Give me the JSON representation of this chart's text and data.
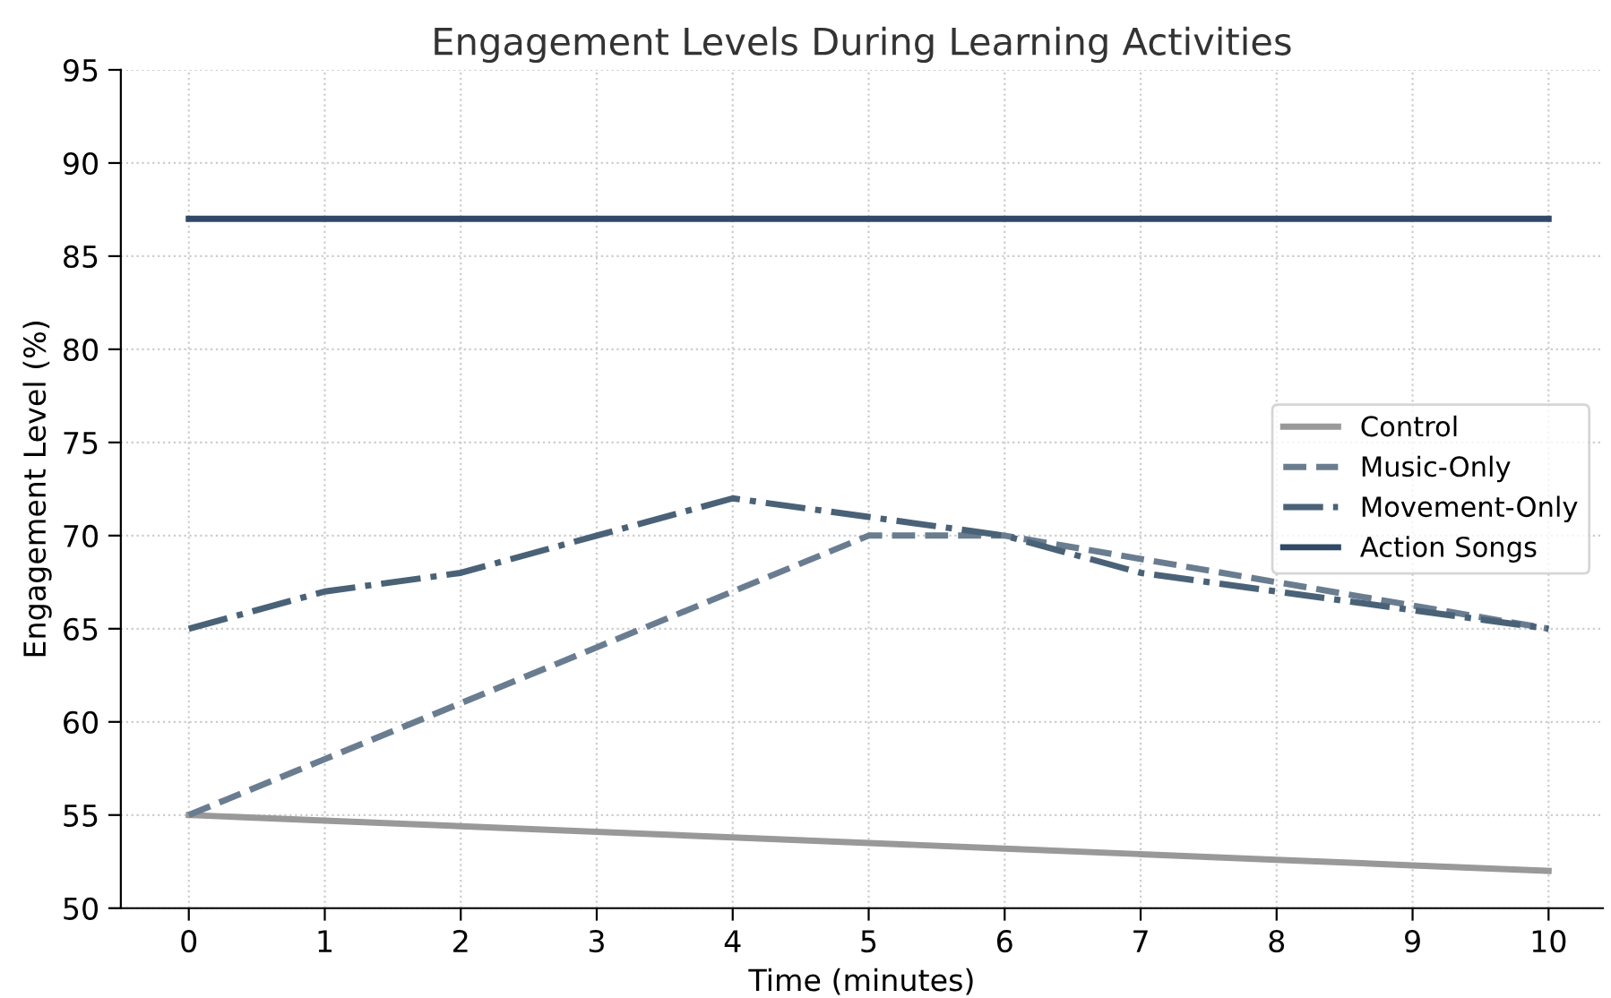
{
  "chart_data": {
    "type": "line",
    "title": "Engagement Levels During Learning Activities",
    "xlabel": "Time (minutes)",
    "ylabel": "Engagement Level (%)",
    "x": [
      0,
      1,
      2,
      3,
      4,
      5,
      6,
      7,
      8,
      9,
      10
    ],
    "series": [
      {
        "name": "Control",
        "color": "#999999",
        "line_style": "solid",
        "values": [
          55,
          54.7,
          54.4,
          54.1,
          53.8,
          53.5,
          53.2,
          52.9,
          52.6,
          52.3,
          52
        ]
      },
      {
        "name": "Music-Only",
        "color": "#6a7d90",
        "line_style": "dashed",
        "values": [
          55,
          58,
          61,
          64,
          67,
          70,
          70,
          68.75,
          67.5,
          66.25,
          65
        ]
      },
      {
        "name": "Movement-Only",
        "color": "#4a6277",
        "line_style": "dashdot",
        "values": [
          65,
          67,
          68,
          70,
          72,
          71,
          70,
          68,
          67,
          66,
          65
        ]
      },
      {
        "name": "Action Songs",
        "color": "#2f4966",
        "line_style": "solid",
        "values": [
          87,
          87,
          87,
          87,
          87,
          87,
          87,
          87,
          87,
          87,
          87
        ]
      }
    ],
    "xlim": [
      -0.5,
      10.4
    ],
    "xticks": [
      0,
      1,
      2,
      3,
      4,
      5,
      6,
      7,
      8,
      9,
      10
    ],
    "ylim": [
      50,
      95
    ],
    "yticks": [
      50,
      55,
      60,
      65,
      70,
      75,
      80,
      85,
      90,
      95
    ],
    "grid": true,
    "legend": "right",
    "marker": "none"
  }
}
